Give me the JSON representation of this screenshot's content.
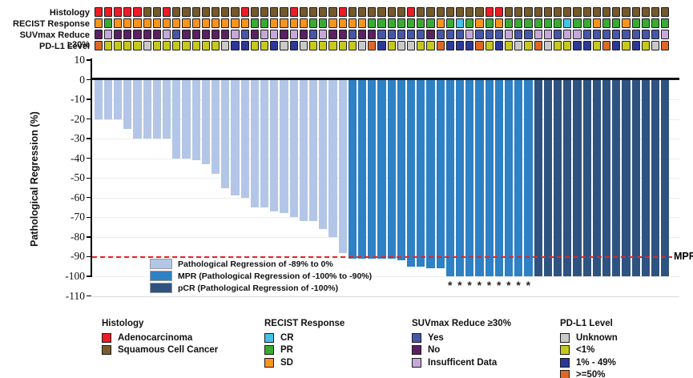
{
  "tracks": {
    "labels": [
      "Histology",
      "RECIST Response",
      "SUVmax Reduce ≥30%",
      "PD-L1 Level"
    ],
    "histology": {
      "colors": {
        "A": "#ed1c24",
        "S": "#75592b"
      },
      "cells": [
        "A",
        "A",
        "A",
        "A",
        "A",
        "S",
        "S",
        "A",
        "S",
        "S",
        "S",
        "S",
        "S",
        "S",
        "S",
        "A",
        "S",
        "S",
        "S",
        "S",
        "A",
        "S",
        "S",
        "S",
        "S",
        "A",
        "S",
        "S",
        "S",
        "S",
        "S",
        "S",
        "A",
        "S",
        "S",
        "S",
        "S",
        "S",
        "S",
        "S",
        "A",
        "A",
        "S",
        "S",
        "S",
        "S",
        "S",
        "S",
        "S",
        "S",
        "S",
        "S",
        "S",
        "S",
        "S",
        "S",
        "S",
        "S",
        "S"
      ]
    },
    "recist": {
      "colors": {
        "S": "#f7941d",
        "P": "#3aaa35",
        "C": "#45c1ea"
      },
      "cells": [
        "S",
        "P",
        "S",
        "S",
        "S",
        "S",
        "S",
        "S",
        "S",
        "S",
        "S",
        "S",
        "S",
        "S",
        "S",
        "S",
        "P",
        "P",
        "S",
        "S",
        "S",
        "S",
        "P",
        "P",
        "S",
        "S",
        "S",
        "S",
        "P",
        "P",
        "P",
        "P",
        "P",
        "P",
        "P",
        "S",
        "P",
        "C",
        "P",
        "S",
        "P",
        "S",
        "P",
        "P",
        "P",
        "P",
        "P",
        "P",
        "C",
        "P",
        "P",
        "S",
        "P",
        "P",
        "S",
        "P",
        "P",
        "P",
        "P"
      ]
    },
    "suvmax": {
      "colors": {
        "Y": "#4656a8",
        "N": "#5c2162",
        "I": "#c5a8d8"
      },
      "cells": [
        "N",
        "I",
        "N",
        "N",
        "N",
        "N",
        "N",
        "I",
        "Y",
        "N",
        "N",
        "N",
        "N",
        "N",
        "I",
        "Y",
        "N",
        "I",
        "I",
        "N",
        "I",
        "N",
        "Y",
        "I",
        "N",
        "N",
        "Y",
        "N",
        "N",
        "Y",
        "Y",
        "Y",
        "Y",
        "Y",
        "N",
        "Y",
        "Y",
        "Y",
        "I",
        "Y",
        "Y",
        "Y",
        "I",
        "Y",
        "Y",
        "I",
        "I",
        "Y",
        "I",
        "I",
        "Y",
        "Y",
        "Y",
        "Y",
        "Y",
        "Y",
        "Y",
        "Y",
        "I"
      ]
    },
    "pdl1": {
      "colors": {
        "U": "#c9c9c9",
        "L": "#c6c81f",
        "M": "#2c3897",
        "H": "#dd6727"
      },
      "cells": [
        "H",
        "L",
        "L",
        "L",
        "L",
        "U",
        "L",
        "L",
        "L",
        "L",
        "L",
        "L",
        "L",
        "U",
        "M",
        "M",
        "L",
        "L",
        "M",
        "U",
        "M",
        "U",
        "L",
        "L",
        "L",
        "L",
        "L",
        "U",
        "H",
        "M",
        "L",
        "U",
        "U",
        "L",
        "L",
        "H",
        "M",
        "M",
        "M",
        "H",
        "L",
        "M",
        "L",
        "U",
        "L",
        "H",
        "U",
        "L",
        "L",
        "M",
        "M",
        "L",
        "H",
        "M",
        "L",
        "M",
        "L",
        "U",
        "H"
      ]
    }
  },
  "chart_data": {
    "type": "bar",
    "title": "",
    "xlabel": "",
    "ylabel": "Pathological Regression (%)",
    "ylim": [
      -110,
      10
    ],
    "yticks": [
      10,
      0,
      -10,
      -20,
      -30,
      -40,
      -50,
      -60,
      -70,
      -80,
      -90,
      -100,
      -110
    ],
    "grid": "horizontal-light",
    "values": [
      -20,
      -20,
      -20,
      -25,
      -30,
      -30,
      -30,
      -30,
      -40,
      -40,
      -41,
      -43,
      -48,
      -55,
      -59,
      -60,
      -65,
      -65,
      -67,
      -68,
      -70,
      -72,
      -72,
      -76,
      -80,
      -88,
      -91,
      -91,
      -91,
      -91,
      -91,
      -92,
      -95,
      -95,
      -96,
      -96,
      -100,
      -100,
      -100,
      -100,
      -100,
      -100,
      -100,
      -100,
      -100,
      -100,
      -100,
      -100,
      -100,
      -100,
      -100,
      -100,
      -100,
      -100,
      -100,
      -100,
      -100,
      -100,
      -100
    ],
    "groups": {
      "light_count": 26,
      "mpr_count": 19,
      "pcr_count": 14
    },
    "colors": {
      "light": "#b3c6e7",
      "mpr": "#2d81c4",
      "pcr": "#2f5381",
      "reference": "#ed2024"
    },
    "asterisk_bars": [
      37,
      38,
      39,
      40,
      41,
      42,
      43,
      44,
      45
    ],
    "asterisk_symbol": "*",
    "reference_line": {
      "y": -90,
      "label": "MPR"
    },
    "legend_position": "inside-bottom-left",
    "legend": [
      {
        "key": "light",
        "label": "Pathological Regression of -89% to 0%"
      },
      {
        "key": "mpr",
        "label": "MPR (Pathological Regression of -100% to -90%)"
      },
      {
        "key": "pcr",
        "label": "pCR (Pathological Regression of -100%)"
      }
    ]
  },
  "bottom_legends": [
    {
      "title": "Histology",
      "items": [
        {
          "label": "Adenocarcinoma",
          "color": "#ed1c24"
        },
        {
          "label": "Squamous Cell Cancer",
          "color": "#7a5c2b"
        }
      ]
    },
    {
      "title": "RECIST Response",
      "items": [
        {
          "label": "CR",
          "color": "#45c1ea"
        },
        {
          "label": "PR",
          "color": "#3aaa35"
        },
        {
          "label": "SD",
          "color": "#f7941d"
        }
      ]
    },
    {
      "title": "SUVmax Reduce ≥30%",
      "items": [
        {
          "label": "Yes",
          "color": "#4656a8"
        },
        {
          "label": "No",
          "color": "#5c2162"
        },
        {
          "label": "Insufficent Data",
          "color": "#c5a8d8"
        }
      ]
    },
    {
      "title": "PD-L1 Level",
      "items": [
        {
          "label": "Unknown",
          "color": "#c9c9c9"
        },
        {
          "label": "<1%",
          "color": "#c6c81f"
        },
        {
          "label": "1% - 49%",
          "color": "#2c3897"
        },
        {
          "label": ">=50%",
          "color": "#dd6727"
        }
      ]
    }
  ]
}
